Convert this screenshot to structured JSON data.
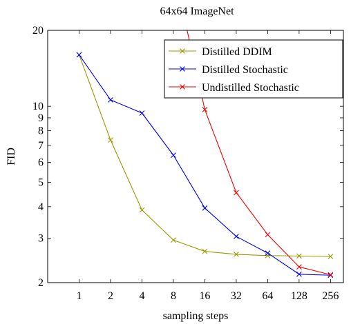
{
  "chart_data": {
    "type": "line",
    "title": "64x64 ImageNet",
    "xlabel": "sampling steps",
    "ylabel": "FID",
    "x_scale": "log2",
    "y_scale": "log",
    "xlim": [
      0.5,
      340
    ],
    "ylim": [
      2,
      20
    ],
    "x_ticks": [
      1,
      2,
      4,
      8,
      16,
      32,
      64,
      128,
      256
    ],
    "y_ticks": [
      2,
      3,
      4,
      5,
      6,
      7,
      8,
      9,
      10,
      20
    ],
    "grid": false,
    "legend_position": "top-right",
    "series": [
      {
        "name": "Distilled DDIM",
        "color": "#999900",
        "marker": "x",
        "x": [
          1,
          2,
          4,
          8,
          16,
          32,
          64,
          128,
          256
        ],
        "y": [
          16.0,
          7.35,
          3.88,
          2.95,
          2.66,
          2.59,
          2.56,
          2.55,
          2.54
        ]
      },
      {
        "name": "Distilled Stochastic",
        "color": "#0000ee",
        "marker": "x",
        "x": [
          1,
          2,
          4,
          8,
          16,
          32,
          64,
          128,
          256
        ],
        "y": [
          16.0,
          10.6,
          9.4,
          6.4,
          3.95,
          3.05,
          2.62,
          2.16,
          2.14
        ]
      },
      {
        "name": "Undistilled Stochastic",
        "color": "#ee0000",
        "marker": "x",
        "x": [
          16,
          32,
          64,
          128,
          256
        ],
        "y": [
          9.7,
          4.55,
          3.1,
          2.31,
          2.15
        ],
        "extends_above_plot_toward": [
          8,
          35
        ]
      }
    ]
  }
}
